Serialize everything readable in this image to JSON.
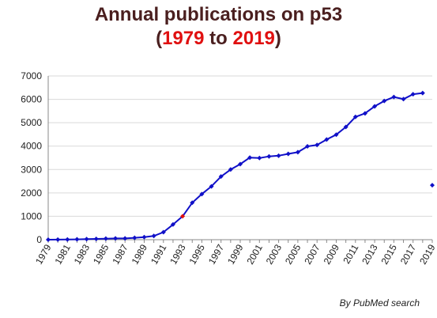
{
  "title": {
    "line1": "Annual publications on p53",
    "open_paren": "(",
    "year_start": "1979",
    "to_word": " to ",
    "year_end": "2019",
    "close_paren": ")"
  },
  "credit": "By PubMed search",
  "colors": {
    "title": "#4a1f1f",
    "title_years": "#e01010",
    "series": "#1010c8",
    "highlight_point": "#e01010",
    "gridline": "#d9d9d9",
    "axis": "#888888"
  },
  "chart_data": {
    "type": "line",
    "x_tick_labels": [
      "1979",
      "1981",
      "1983",
      "1985",
      "1987",
      "1989",
      "1991",
      "1993",
      "1995",
      "1997",
      "1999",
      "2001",
      "2003",
      "2005",
      "2007",
      "2009",
      "2011",
      "2013",
      "2015",
      "2017",
      "2019"
    ],
    "y_tick_labels": [
      "0",
      "1000",
      "2000",
      "3000",
      "4000",
      "5000",
      "6000",
      "7000"
    ],
    "xlim": [
      1979,
      2019
    ],
    "ylim": [
      0,
      7000
    ],
    "grid": "horizontal",
    "series": [
      {
        "marker": "diamond",
        "line_x": [
          1979,
          1980,
          1981,
          1982,
          1983,
          1984,
          1985,
          1986,
          1987,
          1988,
          1989,
          1990,
          1991,
          1992,
          1993,
          1994,
          1995,
          1996,
          1997,
          1998,
          1999,
          2000,
          2001,
          2002,
          2003,
          2004,
          2005,
          2006,
          2007,
          2008,
          2009,
          2010,
          2011,
          2012,
          2013,
          2014,
          2015,
          2016,
          2017,
          2018
        ],
        "line_y": [
          0,
          5,
          10,
          15,
          25,
          35,
          45,
          55,
          55,
          80,
          110,
          160,
          320,
          650,
          1000,
          1580,
          1950,
          2280,
          2700,
          3000,
          3230,
          3510,
          3490,
          3560,
          3590,
          3670,
          3740,
          3990,
          4050,
          4280,
          4490,
          4820,
          5250,
          5400,
          5700,
          5930,
          6100,
          6010,
          6220,
          6270
        ],
        "standalone_point": {
          "x": 2019,
          "y": 2330
        },
        "highlight_point": {
          "x": 1993,
          "y": 1000
        }
      }
    ]
  }
}
